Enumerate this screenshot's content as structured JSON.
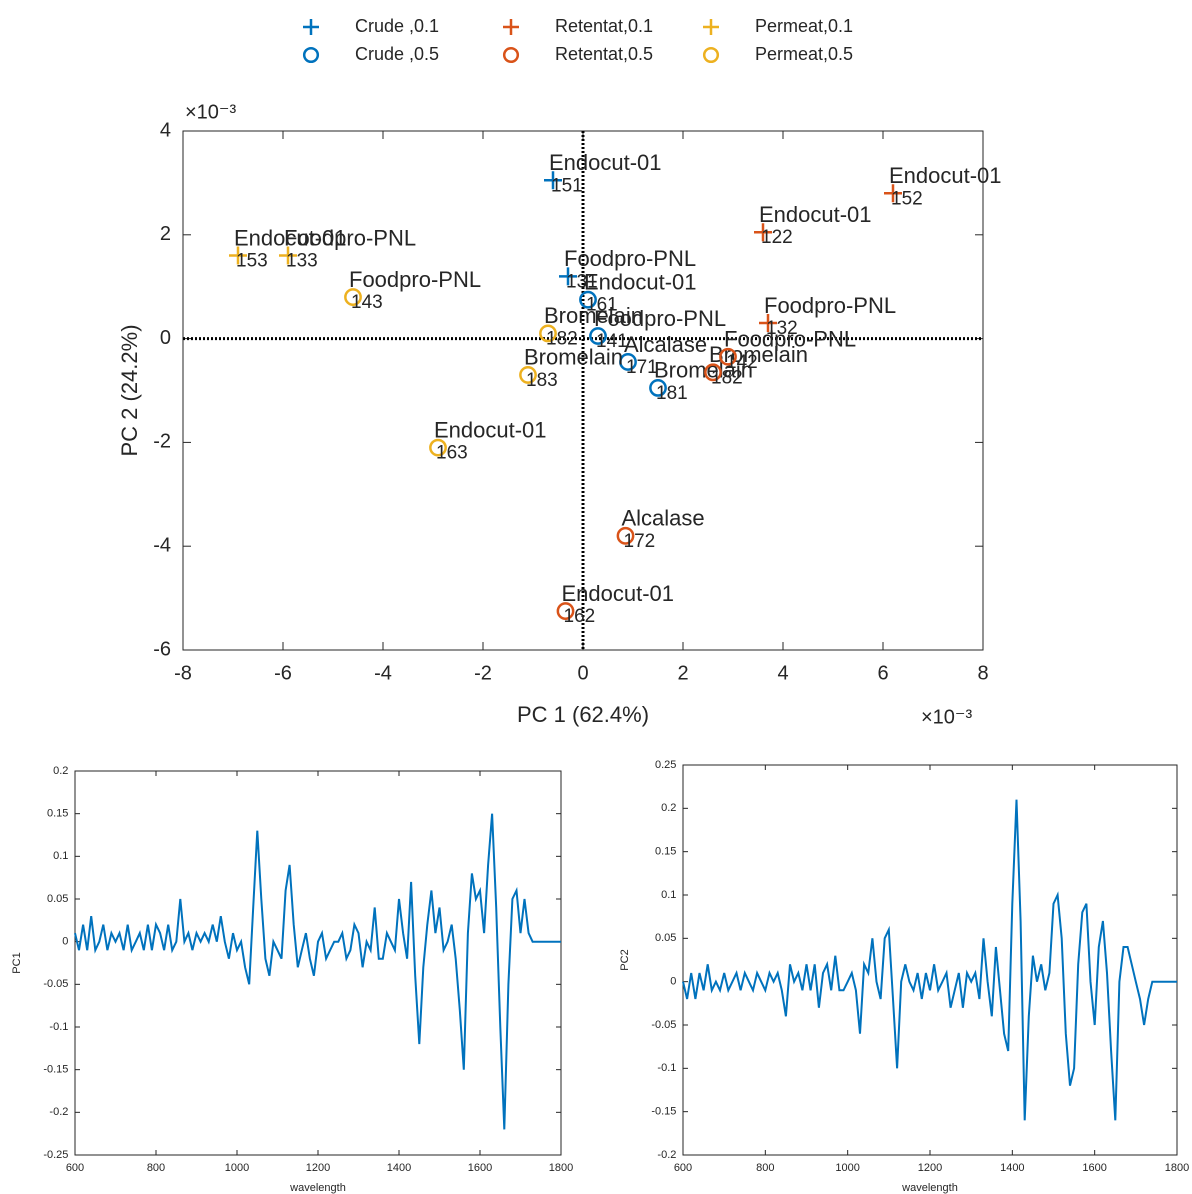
{
  "chart_data": [
    {
      "type": "scatter",
      "xlabel": "PC 1 (62.4%)",
      "ylabel": "PC 2 (24.2%)",
      "x_scale_label": "×10⁻³",
      "y_scale_label": "×10⁻³",
      "xlim": [
        -8,
        8
      ],
      "xticks": [
        -8,
        -6,
        -4,
        -2,
        0,
        2,
        4,
        6,
        8
      ],
      "ylim": [
        -6,
        4
      ],
      "yticks": [
        -6,
        -4,
        -2,
        0,
        2,
        4
      ],
      "zero_lines": true,
      "series": [
        {
          "name": "Crude ,0.1",
          "color": "#0072bd",
          "marker": "+",
          "x": [
            -0.6,
            -0.3
          ],
          "values": [
            3.05,
            1.2
          ],
          "labels": [
            "Endocut-01",
            "Foodpro-PNL"
          ],
          "ids": [
            "151",
            "131"
          ]
        },
        {
          "name": "Crude ,0.5",
          "color": "#0072bd",
          "marker": "o",
          "x": [
            0.1,
            0.3,
            0.9,
            1.5
          ],
          "values": [
            0.75,
            0.05,
            -0.45,
            -0.95
          ],
          "labels": [
            "Endocut-01",
            "Foodpro-PNL",
            "Alcalase",
            "Bromelain"
          ],
          "ids": [
            "161",
            "141",
            "171",
            "181"
          ]
        },
        {
          "name": "Retentat,0.1",
          "color": "#d95319",
          "marker": "+",
          "x": [
            6.2,
            3.6,
            3.7
          ],
          "values": [
            2.8,
            2.05,
            0.3
          ],
          "labels": [
            "Endocut-01",
            "Endocut-01",
            "Foodpro-PNL"
          ],
          "ids": [
            "152",
            "122",
            "132"
          ]
        },
        {
          "name": "Retentat,0.5",
          "color": "#d95319",
          "marker": "o",
          "x": [
            2.6,
            2.9,
            0.85,
            -0.35
          ],
          "values": [
            -0.65,
            -0.35,
            -3.8,
            -5.25
          ],
          "labels": [
            "Bromelain",
            "Foodpro-PNL",
            "Alcalase",
            "Endocut-01"
          ],
          "ids": [
            "182",
            "142",
            "172",
            "162"
          ]
        },
        {
          "name": "Permeat,0.1",
          "color": "#edb120",
          "marker": "+",
          "x": [
            -6.9,
            -5.9
          ],
          "values": [
            1.6,
            1.6
          ],
          "labels": [
            "Endocut-01",
            "Foodpro-PNL"
          ],
          "ids": [
            "153",
            "133"
          ]
        },
        {
          "name": "Permeat,0.5",
          "color": "#edb120",
          "marker": "o",
          "x": [
            -4.6,
            -0.7,
            -1.1,
            -2.9
          ],
          "values": [
            0.8,
            0.1,
            -0.7,
            -2.1
          ],
          "labels": [
            "Foodpro-PNL",
            "Bromelain",
            "Bromelain",
            "Endocut-01"
          ],
          "ids": [
            "143",
            "182",
            "183",
            "163"
          ]
        }
      ]
    },
    {
      "type": "line",
      "xlabel": "wavelength",
      "ylabel": "PC1",
      "color": "#0072bd",
      "xlim": [
        600,
        1800
      ],
      "xticks": [
        600,
        800,
        1000,
        1200,
        1400,
        1600,
        1800
      ],
      "ylim": [
        -0.25,
        0.2
      ],
      "yticks": [
        -0.25,
        -0.2,
        -0.15,
        -0.1,
        -0.05,
        0,
        0.05,
        0.1,
        0.15,
        0.2
      ],
      "x": [
        600,
        610,
        620,
        630,
        640,
        650,
        660,
        670,
        680,
        690,
        700,
        710,
        720,
        730,
        740,
        750,
        760,
        770,
        780,
        790,
        800,
        810,
        820,
        830,
        840,
        850,
        860,
        870,
        880,
        890,
        900,
        910,
        920,
        930,
        940,
        950,
        960,
        970,
        980,
        990,
        1000,
        1010,
        1020,
        1030,
        1040,
        1050,
        1060,
        1070,
        1080,
        1090,
        1100,
        1110,
        1120,
        1130,
        1140,
        1150,
        1160,
        1170,
        1180,
        1190,
        1200,
        1210,
        1220,
        1230,
        1240,
        1250,
        1260,
        1270,
        1280,
        1290,
        1300,
        1310,
        1320,
        1330,
        1340,
        1350,
        1360,
        1370,
        1380,
        1390,
        1400,
        1410,
        1420,
        1430,
        1440,
        1450,
        1460,
        1470,
        1480,
        1490,
        1500,
        1510,
        1520,
        1530,
        1540,
        1550,
        1560,
        1570,
        1580,
        1590,
        1600,
        1610,
        1620,
        1630,
        1640,
        1650,
        1660,
        1670,
        1680,
        1690,
        1700,
        1710,
        1720,
        1730,
        1740,
        1750,
        1760,
        1770,
        1780,
        1790,
        1800
      ],
      "values": [
        0.01,
        -0.01,
        0.02,
        -0.01,
        0.03,
        -0.01,
        0,
        0.02,
        -0.01,
        0.01,
        0,
        0.01,
        -0.01,
        0.02,
        -0.01,
        0,
        0.01,
        -0.01,
        0.02,
        -0.01,
        0.02,
        0.01,
        -0.01,
        0.02,
        -0.01,
        0,
        0.05,
        0,
        0.01,
        -0.01,
        0.01,
        0,
        0.01,
        0,
        0.02,
        0,
        0.03,
        0,
        -0.02,
        0.01,
        -0.01,
        0,
        -0.03,
        -0.05,
        0.04,
        0.13,
        0.05,
        -0.02,
        -0.04,
        0,
        -0.01,
        -0.02,
        0.06,
        0.09,
        0.02,
        -0.03,
        -0.01,
        0.01,
        -0.02,
        -0.04,
        0,
        0.01,
        -0.02,
        -0.01,
        0,
        0,
        0.01,
        -0.02,
        -0.01,
        0.02,
        0.01,
        -0.03,
        0,
        -0.01,
        0.04,
        -0.02,
        -0.02,
        0.01,
        0,
        -0.01,
        0.05,
        0.01,
        -0.02,
        0.07,
        -0.04,
        -0.12,
        -0.03,
        0.02,
        0.06,
        0.01,
        0.04,
        -0.01,
        0,
        0.02,
        -0.02,
        -0.08,
        -0.15,
        0.01,
        0.08,
        0.05,
        0.06,
        0.01,
        0.09,
        0.15,
        0.04,
        -0.1,
        -0.22,
        -0.05,
        0.05,
        0.06,
        0.01,
        0.05,
        0.01,
        0,
        0,
        0,
        0,
        0,
        0,
        0,
        0
      ]
    },
    {
      "type": "line",
      "xlabel": "wavelength",
      "ylabel": "PC2",
      "color": "#0072bd",
      "xlim": [
        600,
        1800
      ],
      "xticks": [
        600,
        800,
        1000,
        1200,
        1400,
        1600,
        1800
      ],
      "ylim": [
        -0.2,
        0.25
      ],
      "yticks": [
        -0.2,
        -0.15,
        -0.1,
        -0.05,
        0,
        0.05,
        0.1,
        0.15,
        0.2,
        0.25
      ],
      "x": [
        600,
        610,
        620,
        630,
        640,
        650,
        660,
        670,
        680,
        690,
        700,
        710,
        720,
        730,
        740,
        750,
        760,
        770,
        780,
        790,
        800,
        810,
        820,
        830,
        840,
        850,
        860,
        870,
        880,
        890,
        900,
        910,
        920,
        930,
        940,
        950,
        960,
        970,
        980,
        990,
        1000,
        1010,
        1020,
        1030,
        1040,
        1050,
        1060,
        1070,
        1080,
        1090,
        1100,
        1110,
        1120,
        1130,
        1140,
        1150,
        1160,
        1170,
        1180,
        1190,
        1200,
        1210,
        1220,
        1230,
        1240,
        1250,
        1260,
        1270,
        1280,
        1290,
        1300,
        1310,
        1320,
        1330,
        1340,
        1350,
        1360,
        1370,
        1380,
        1390,
        1400,
        1410,
        1420,
        1430,
        1440,
        1450,
        1460,
        1470,
        1480,
        1490,
        1500,
        1510,
        1520,
        1530,
        1540,
        1550,
        1560,
        1570,
        1580,
        1590,
        1600,
        1610,
        1620,
        1630,
        1640,
        1650,
        1660,
        1670,
        1680,
        1690,
        1700,
        1710,
        1720,
        1730,
        1740,
        1750,
        1760,
        1770,
        1780,
        1790,
        1800
      ],
      "values": [
        0,
        -0.02,
        0.01,
        -0.02,
        0.01,
        -0.01,
        0.02,
        -0.01,
        0,
        -0.01,
        0.01,
        -0.01,
        0,
        0.01,
        -0.01,
        0.01,
        0,
        -0.01,
        0.01,
        0,
        -0.01,
        0.01,
        0,
        0.01,
        -0.01,
        -0.04,
        0.02,
        0,
        0.01,
        -0.01,
        0.02,
        -0.01,
        0.02,
        -0.03,
        0.01,
        0.02,
        -0.01,
        0.03,
        -0.01,
        -0.01,
        0,
        0.01,
        -0.01,
        -0.06,
        0.02,
        0.01,
        0.05,
        0,
        -0.02,
        0.05,
        0.06,
        -0.02,
        -0.1,
        0,
        0.02,
        0,
        -0.01,
        0.01,
        -0.02,
        0.01,
        -0.01,
        0.02,
        -0.01,
        0,
        0.01,
        -0.03,
        -0.01,
        0.01,
        -0.03,
        0.01,
        0,
        0.01,
        -0.02,
        0.05,
        0,
        -0.04,
        0.04,
        -0.01,
        -0.06,
        -0.08,
        0.09,
        0.21,
        0.07,
        -0.16,
        -0.04,
        0.03,
        0,
        0.02,
        -0.01,
        0.01,
        0.09,
        0.1,
        0.05,
        -0.06,
        -0.12,
        -0.1,
        0.02,
        0.08,
        0.09,
        0,
        -0.05,
        0.04,
        0.07,
        0.01,
        -0.08,
        -0.16,
        0,
        0.04,
        0.04,
        0.02,
        0,
        -0.02,
        -0.05,
        -0.02,
        0,
        0,
        0,
        0,
        0,
        0,
        0
      ]
    }
  ]
}
